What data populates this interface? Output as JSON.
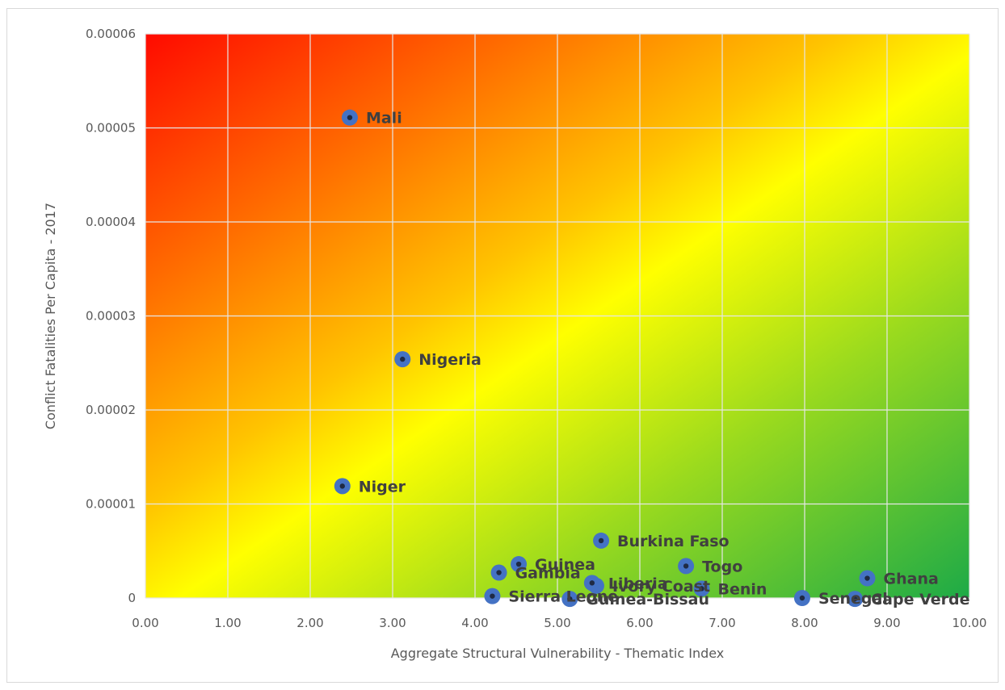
{
  "chart_data": {
    "type": "scatter",
    "title": "",
    "xlabel": "Aggregate Structural Vulnerability - Thematic Index",
    "ylabel": "Conflict Fatalities Per Capita - 2017",
    "xlim": [
      0,
      10
    ],
    "ylim": [
      0,
      6e-05
    ],
    "x_ticks": [
      0,
      1,
      2,
      3,
      4,
      5,
      6,
      7,
      8,
      9,
      10
    ],
    "x_tick_labels": [
      "0.00",
      "1.00",
      "2.00",
      "3.00",
      "4.00",
      "5.00",
      "6.00",
      "7.00",
      "8.00",
      "9.00",
      "10.00"
    ],
    "y_ticks": [
      0,
      1e-05,
      2e-05,
      3e-05,
      4e-05,
      5e-05,
      6e-05
    ],
    "y_tick_labels": [
      "0",
      "0.00001",
      "0.00002",
      "0.00003",
      "0.00004",
      "0.00005",
      "0.00006"
    ],
    "grid": true,
    "legend": "none",
    "background_gradient": {
      "description": "diagonal red (top-left) through orange and yellow to green (bottom-right)",
      "colors": [
        "#ff0a00",
        "#ff6a00",
        "#ffc400",
        "#ffff00",
        "#9ada1e",
        "#1daa47"
      ]
    },
    "marker_color": "#4472c4",
    "points": [
      {
        "label": "Mali",
        "x": 2.48,
        "y": 5.11e-05
      },
      {
        "label": "Nigeria",
        "x": 3.12,
        "y": 2.54e-05
      },
      {
        "label": "Niger",
        "x": 2.39,
        "y": 1.19e-05
      },
      {
        "label": "Burkina Faso",
        "x": 5.53,
        "y": 6.1e-06
      },
      {
        "label": "Guinea",
        "x": 4.53,
        "y": 3.6e-06
      },
      {
        "label": "Gambia",
        "x": 4.29,
        "y": 2.7e-06
      },
      {
        "label": "Togo",
        "x": 6.56,
        "y": 3.4e-06
      },
      {
        "label": "Ivory Coast",
        "x": 5.47,
        "y": 1.3e-06
      },
      {
        "label": "Liberia",
        "x": 5.42,
        "y": 1.6e-06
      },
      {
        "label": "Benin",
        "x": 6.75,
        "y": 1e-06
      },
      {
        "label": "Ghana",
        "x": 8.76,
        "y": 2.1e-06
      },
      {
        "label": "Sierra Leone",
        "x": 4.21,
        "y": 2e-07
      },
      {
        "label": "Guinea-Bissau",
        "x": 5.15,
        "y": -1e-07
      },
      {
        "label": "Senegal",
        "x": 7.97,
        "y": 0.0
      },
      {
        "label": "Cape Verde",
        "x": 8.61,
        "y": -1e-07
      }
    ]
  }
}
